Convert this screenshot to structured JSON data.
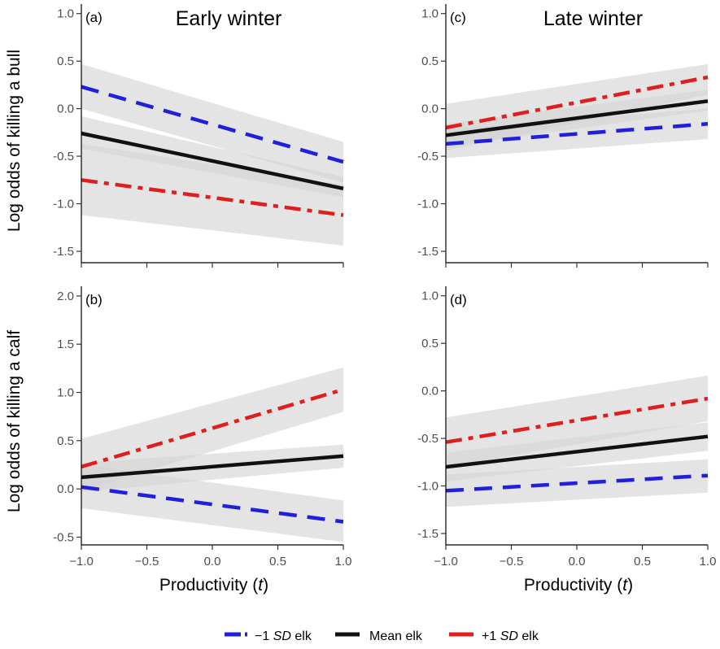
{
  "colors": {
    "minus_sd": "#1f1fdc",
    "mean": "#111111",
    "plus_sd": "#e01e1e",
    "ribbon": "#d3d3d3"
  },
  "row_labels": {
    "top": "Log odds of killing a bull",
    "bottom": "Log odds of killing a calf"
  },
  "xlabel_main": "Productivity (",
  "xlabel_var": "t",
  "xlabel_close": ")",
  "legend": [
    {
      "prefix": "−1 ",
      "sd": "SD",
      "suffix": " elk"
    },
    {
      "prefix": "Mean elk",
      "sd": "",
      "suffix": ""
    },
    {
      "prefix": "+1 ",
      "sd": "SD",
      "suffix": " elk"
    }
  ],
  "chart_data": [
    {
      "panel": "a",
      "panel_label": "(a)",
      "title": "Early winter",
      "type": "line",
      "x_ticks": [
        "-1.0",
        "-0.5",
        "0.0",
        "0.5",
        "1.0"
      ],
      "y_ticks": [
        1.0,
        0.5,
        0.0,
        -0.5,
        -1.0,
        -1.5
      ],
      "y_tick_labels": [
        "1.0",
        "0.5",
        "0.0",
        "-0.5",
        "-1.0",
        "-1.5"
      ],
      "ylim": [
        -1.62,
        1.1
      ],
      "xlim": [
        -1.0,
        1.0
      ],
      "series": [
        {
          "key": "minus_sd",
          "style": "dashed",
          "x": [
            -1.0,
            1.0
          ],
          "y": [
            0.23,
            -0.56
          ],
          "ci_low": [
            0.0,
            -0.78
          ],
          "ci_high": [
            0.47,
            -0.35
          ]
        },
        {
          "key": "mean",
          "style": "solid",
          "x": [
            -1.0,
            1.0
          ],
          "y": [
            -0.26,
            -0.84
          ],
          "ci_low": [
            -0.42,
            -0.93
          ],
          "ci_high": [
            -0.08,
            -0.72
          ]
        },
        {
          "key": "plus_sd",
          "style": "dashdot",
          "x": [
            -1.0,
            1.0
          ],
          "y": [
            -0.75,
            -1.12
          ],
          "ci_low": [
            -1.12,
            -1.44
          ],
          "ci_high": [
            -0.37,
            -0.8
          ]
        }
      ]
    },
    {
      "panel": "c",
      "panel_label": "(c)",
      "title": "Late winter",
      "type": "line",
      "x_ticks": [
        "-1.0",
        "-0.5",
        "0.0",
        "0.5",
        "1.0"
      ],
      "y_ticks": [
        1.0,
        0.5,
        0.0,
        -0.5,
        -1.0,
        -1.5
      ],
      "y_tick_labels": [
        "1.0",
        "0.5",
        "0.0",
        "-0.5",
        "-1.0",
        "-1.5"
      ],
      "ylim": [
        -1.62,
        1.1
      ],
      "xlim": [
        -1.0,
        1.0
      ],
      "series": [
        {
          "key": "minus_sd",
          "style": "dashed",
          "x": [
            -1.0,
            1.0
          ],
          "y": [
            -0.37,
            -0.16
          ],
          "ci_low": [
            -0.52,
            -0.32
          ],
          "ci_high": [
            -0.22,
            0.0
          ]
        },
        {
          "key": "mean",
          "style": "solid",
          "x": [
            -1.0,
            1.0
          ],
          "y": [
            -0.28,
            0.08
          ],
          "ci_low": [
            -0.4,
            -0.02
          ],
          "ci_high": [
            -0.16,
            0.2
          ]
        },
        {
          "key": "plus_sd",
          "style": "dashdot",
          "x": [
            -1.0,
            1.0
          ],
          "y": [
            -0.2,
            0.33
          ],
          "ci_low": [
            -0.44,
            0.15
          ],
          "ci_high": [
            0.05,
            0.47
          ]
        }
      ]
    },
    {
      "panel": "b",
      "panel_label": "(b)",
      "title": "",
      "type": "line",
      "x_ticks": [
        "-1.0",
        "-0.5",
        "0.0",
        "0.5",
        "1.0"
      ],
      "y_ticks": [
        2.0,
        1.5,
        1.0,
        0.5,
        0.0,
        -0.5
      ],
      "y_tick_labels": [
        "2.0",
        "1.5",
        "1.0",
        "0.5",
        "0.0",
        "-0.5"
      ],
      "ylim": [
        -0.58,
        2.1
      ],
      "xlim": [
        -1.0,
        1.0
      ],
      "series": [
        {
          "key": "minus_sd",
          "style": "dashed",
          "x": [
            -1.0,
            1.0
          ],
          "y": [
            0.02,
            -0.34
          ],
          "ci_low": [
            -0.2,
            -0.55
          ],
          "ci_high": [
            0.25,
            -0.12
          ]
        },
        {
          "key": "mean",
          "style": "solid",
          "x": [
            -1.0,
            1.0
          ],
          "y": [
            0.12,
            0.34
          ],
          "ci_low": [
            -0.03,
            0.22
          ],
          "ci_high": [
            0.27,
            0.46
          ]
        },
        {
          "key": "plus_sd",
          "style": "dashdot",
          "x": [
            -1.0,
            1.0
          ],
          "y": [
            0.23,
            1.03
          ],
          "ci_low": [
            -0.02,
            0.8
          ],
          "ci_high": [
            0.52,
            1.26
          ]
        }
      ]
    },
    {
      "panel": "d",
      "panel_label": "(d)",
      "title": "",
      "type": "line",
      "x_ticks": [
        "-1.0",
        "-0.5",
        "0.0",
        "0.5",
        "1.0"
      ],
      "y_ticks": [
        1.0,
        0.5,
        0.0,
        -0.5,
        -1.0,
        -1.5
      ],
      "y_tick_labels": [
        "1.0",
        "0.5",
        "0.0",
        "-0.5",
        "-1.0",
        "-1.5"
      ],
      "ylim": [
        -1.62,
        1.1
      ],
      "xlim": [
        -1.0,
        1.0
      ],
      "series": [
        {
          "key": "minus_sd",
          "style": "dashed",
          "x": [
            -1.0,
            1.0
          ],
          "y": [
            -1.05,
            -0.89
          ],
          "ci_low": [
            -1.22,
            -1.07
          ],
          "ci_high": [
            -0.88,
            -0.72
          ]
        },
        {
          "key": "mean",
          "style": "solid",
          "x": [
            -1.0,
            1.0
          ],
          "y": [
            -0.8,
            -0.48
          ],
          "ci_low": [
            -0.95,
            -0.63
          ],
          "ci_high": [
            -0.65,
            -0.33
          ]
        },
        {
          "key": "plus_sd",
          "style": "dashdot",
          "x": [
            -1.0,
            1.0
          ],
          "y": [
            -0.54,
            -0.08
          ],
          "ci_low": [
            -0.8,
            -0.32
          ],
          "ci_high": [
            -0.28,
            0.16
          ]
        }
      ]
    }
  ]
}
